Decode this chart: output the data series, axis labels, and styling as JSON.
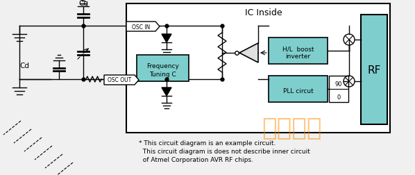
{
  "bg_color": "#f0f0f0",
  "ic_label": "IC Inside",
  "footnote": [
    "* This circuit diagram is an example circuit.",
    "  This circuit diagram is does not describe inner circuit",
    "  of Atmel Corporation AVR RF chips."
  ],
  "watermark": "统一电子",
  "watermark_color": "#FF8C00",
  "watermark_alpha": 0.5,
  "teal_color": "#7ECECE",
  "black": "#000000",
  "white": "#FFFFFF"
}
